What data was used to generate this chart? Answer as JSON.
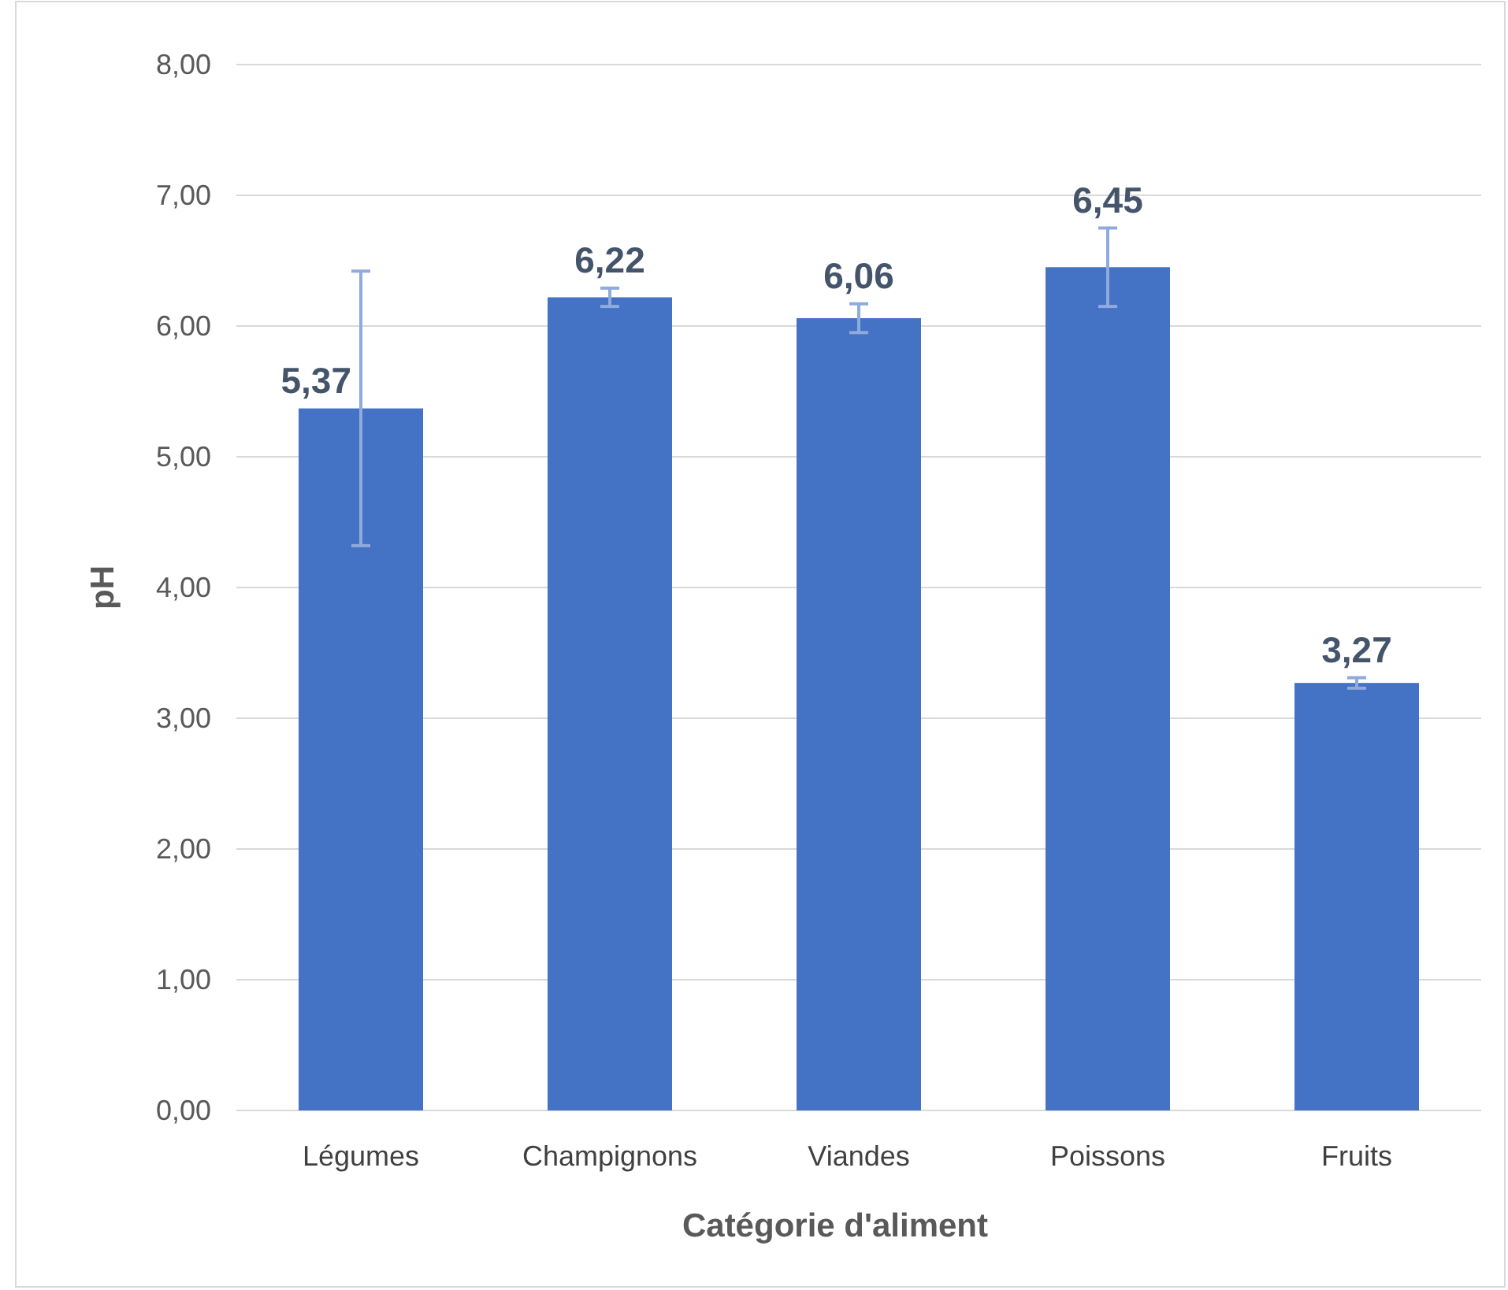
{
  "chart_data": {
    "type": "bar",
    "xlabel": "Catégorie d'aliment",
    "ylabel": "pH",
    "categories": [
      "Légumes",
      "Champignons",
      "Viandes",
      "Poissons",
      "Fruits"
    ],
    "values": [
      5.37,
      6.22,
      6.06,
      6.45,
      3.27
    ],
    "errors": [
      1.05,
      0.07,
      0.11,
      0.3,
      0.04
    ],
    "color": "#4472c4",
    "ylim": [
      0,
      8
    ],
    "yticks": [
      {
        "value": 0,
        "label": "0,00"
      },
      {
        "value": 1,
        "label": "1,00"
      },
      {
        "value": 2,
        "label": "2,00"
      },
      {
        "value": 3,
        "label": "3,00"
      },
      {
        "value": 4,
        "label": "4,00"
      },
      {
        "value": 5,
        "label": "5,00"
      },
      {
        "value": 6,
        "label": "6,00"
      },
      {
        "value": 7,
        "label": "7,00"
      },
      {
        "value": 8,
        "label": "8,00"
      }
    ],
    "value_labels": [
      "5,37",
      "6,22",
      "6,06",
      "6,45",
      "3,27"
    ],
    "grid": "y"
  }
}
